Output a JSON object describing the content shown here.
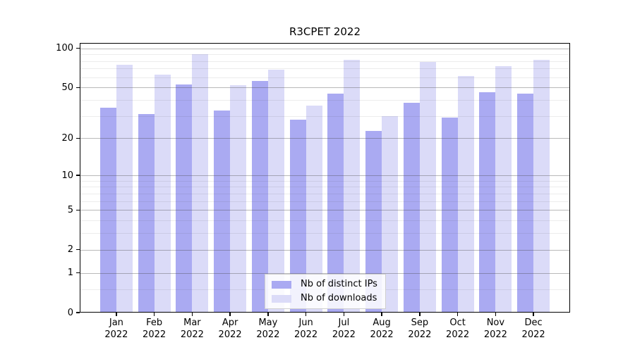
{
  "chart_data": {
    "type": "bar",
    "title": "R3CPET 2022",
    "year": "2022",
    "categories": [
      "Jan",
      "Feb",
      "Mar",
      "Apr",
      "May",
      "Jun",
      "Jul",
      "Aug",
      "Sep",
      "Oct",
      "Nov",
      "Dec"
    ],
    "series": [
      {
        "name": "Nb of distinct IPs",
        "color": "#aaaaf2",
        "values": [
          35,
          31,
          53,
          33,
          56,
          28,
          45,
          23,
          38,
          29,
          46,
          45
        ]
      },
      {
        "name": "Nb of downloads",
        "color": "#dbdbf8",
        "values": [
          75,
          63,
          90,
          52,
          69,
          36,
          82,
          30,
          79,
          61,
          73,
          82
        ]
      }
    ],
    "xlabel": "",
    "ylabel": "",
    "yscale": "log1p",
    "ylim": [
      0,
      110
    ],
    "yticks": [
      0,
      1,
      2,
      5,
      10,
      20,
      50,
      100
    ],
    "grid_values": [
      0.5,
      1,
      2,
      3,
      4,
      5,
      6,
      7,
      8,
      9,
      10,
      20,
      30,
      40,
      50,
      60,
      70,
      80,
      90,
      100
    ],
    "grid": true,
    "legend_position": "lower-center"
  },
  "colors": {
    "background": "#ffffff",
    "frame": "#000000",
    "grid_major": "#b5b5b5",
    "grid_minor": "#e9e9e9",
    "legend_border": "#cfcfcf"
  }
}
